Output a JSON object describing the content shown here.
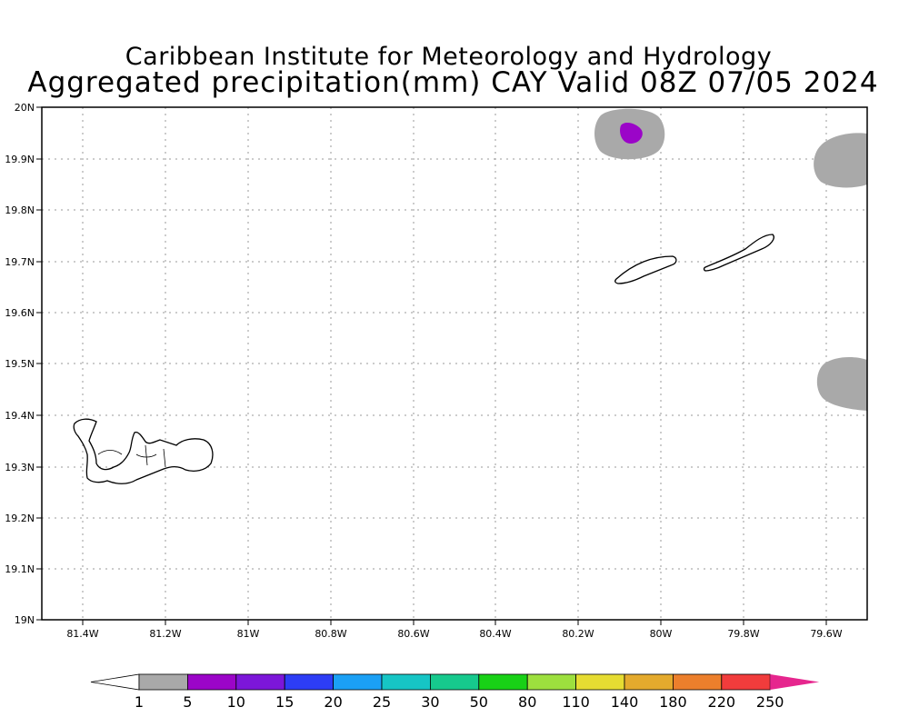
{
  "title_line1": "Caribbean Institute for Meteorology and Hydrology",
  "title_line2": "Aggregated precipitation(mm) CAY Valid 08Z 07/05 2024",
  "lat_ticks": [
    "20N",
    "19.9N",
    "19.8N",
    "19.7N",
    "19.6N",
    "19.5N",
    "19.4N",
    "19.3N",
    "19.2N",
    "19.1N",
    "19N"
  ],
  "lon_ticks": [
    "81.4W",
    "81.2W",
    "81W",
    "80.8W",
    "80.6W",
    "80.4W",
    "80.2W",
    "80W",
    "79.8W",
    "79.6W"
  ],
  "colorbar": {
    "colors": [
      "#a9a9a9",
      "#9b05c8",
      "#7c16d9",
      "#2d3df5",
      "#1ba0f5",
      "#16c5c5",
      "#16c98d",
      "#18d116",
      "#9de03e",
      "#e6dc32",
      "#e4aa2d",
      "#ec7f2c",
      "#f13c3c"
    ],
    "labels": [
      "1",
      "5",
      "10",
      "15",
      "20",
      "25",
      "30",
      "50",
      "80",
      "110",
      "140",
      "180",
      "220",
      "250"
    ],
    "under_color": "#ffffff",
    "over_color": "#e6268e"
  },
  "features": {
    "precip_areas": [
      {
        "name": "precip-area-north",
        "value_range": "1-5",
        "color": "#a9a9a9"
      },
      {
        "name": "precip-core-north",
        "value_range": "5-10",
        "color": "#9b05c8"
      },
      {
        "name": "precip-area-east-north",
        "value_range": "1-5",
        "color": "#a9a9a9"
      },
      {
        "name": "precip-area-east-south",
        "value_range": "1-5",
        "color": "#a9a9a9"
      }
    ],
    "islands": [
      "grand-cayman",
      "little-cayman",
      "cayman-brac"
    ]
  }
}
